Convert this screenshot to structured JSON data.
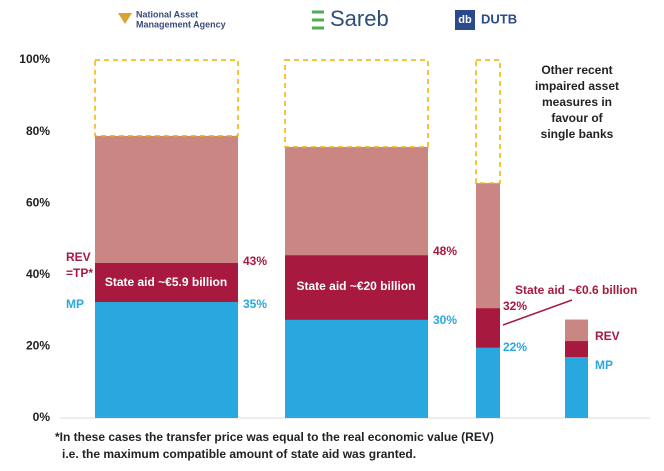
{
  "chart_data": {
    "type": "stacked_bar",
    "logos": [
      "National Asset",
      "Management Agency",
      "Sareb",
      "db",
      "DUTB"
    ],
    "ylim": [
      0,
      100
    ],
    "yticks": [
      {
        "value": 0,
        "label": "0%"
      },
      {
        "value": 20,
        "label": "20%"
      },
      {
        "value": 40,
        "label": "40%"
      },
      {
        "value": 60,
        "label": "60%"
      },
      {
        "value": 80,
        "label": "80%"
      },
      {
        "value": 100,
        "label": "100%"
      }
    ],
    "series": [
      {
        "color": "#29a8e0",
        "values": [
          32.4,
          27.4,
          19.6,
          17
        ]
      },
      {
        "color": "#a8193f",
        "values": [
          10.9,
          18.1,
          11.1,
          4.5
        ]
      },
      {
        "color": "#c98682",
        "values": [
          35.5,
          30.2,
          34.9,
          6
        ]
      },
      {
        "color": "#f0b400",
        "dashed": true,
        "values": [
          21.2,
          24.3,
          34.4,
          null
        ]
      }
    ],
    "annotations": [
      "REV",
      "=TP*",
      "MP",
      "43%",
      "35%",
      "State aid ~€5.9 billion",
      "48%",
      "State aid ~€20 billion",
      "30%",
      "32%",
      "22%",
      "State aid ~€0.6 billion",
      "REV",
      "MP",
      "Other recent",
      "impaired asset",
      "measures in",
      "favour of",
      "single banks"
    ],
    "footnote": [
      "*In these cases the transfer price was equal to the real economic value (REV)",
      "i.e. the maximum compatible amount of state aid was granted."
    ]
  }
}
